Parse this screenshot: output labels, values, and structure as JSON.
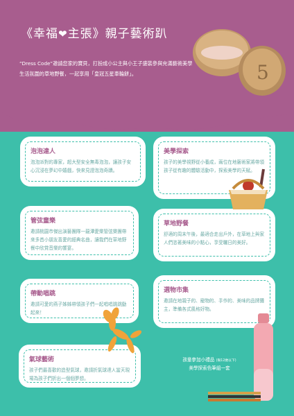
{
  "header": {
    "title_left": "《幸福",
    "title_right": "主張》親子藝術趴",
    "heart_icon": "heart-icon",
    "intro": "“Dress Code”邀請您家的寶貝，打扮成小公主與小王子盛裝參與充滿藝術美學生活氛圍的草地野餐，一起享用「皇冠五星車輪餅」。",
    "cake_mark": "5"
  },
  "cards": [
    {
      "title": "泡泡達人",
      "text": "泡泡派對的專家，超大型安全無毒泡泡，讓孩子安心沉浸在夢幻中嬉戲，快來見證泡泡奇蹟。"
    },
    {
      "title": "美學探索",
      "text": "孩子的美學視野從小養成，兩位在地藝術家將帶領孩子從有趣的體驗活動中，探索美學的天賦。"
    },
    {
      "title": "管弦童樂",
      "text": "邀請桃園市傑出演藝團隊一龍潭愛樂管弦樂團帶來多首小朋友喜愛的經典名曲，讓我們在草地野餐中欣賞音樂的饗宴。"
    },
    {
      "title": "草地野餐",
      "text": "舒適的周末午後，最適合走出戶外，在草地上與家人們恣著美味的小點心，享受曬日的美好。"
    },
    {
      "title": "帶動唱跳",
      "text": "邀請可愛的燕子姊姊帶領孩子們一起唱唱跳跳動起來！"
    },
    {
      "title": "選物市集",
      "text": "邀請在地親子的、寵物的、手作的、美味的品牌攤主，準備各式風格好物。"
    },
    {
      "title": "氣球藝術",
      "text": "孩子們最喜歡的造型氣球，邀請折氣球達人當天現場為孩子們折出一個個夢想。"
    }
  ],
  "note": {
    "line1": "孩童參加小禮品",
    "line1_small": "(限12歲以下)",
    "line2": "美學探索色筆組一套"
  },
  "colors": {
    "purple": "#a85d8e",
    "teal": "#3dbfaa",
    "text_teal": "#6aa9a4"
  }
}
